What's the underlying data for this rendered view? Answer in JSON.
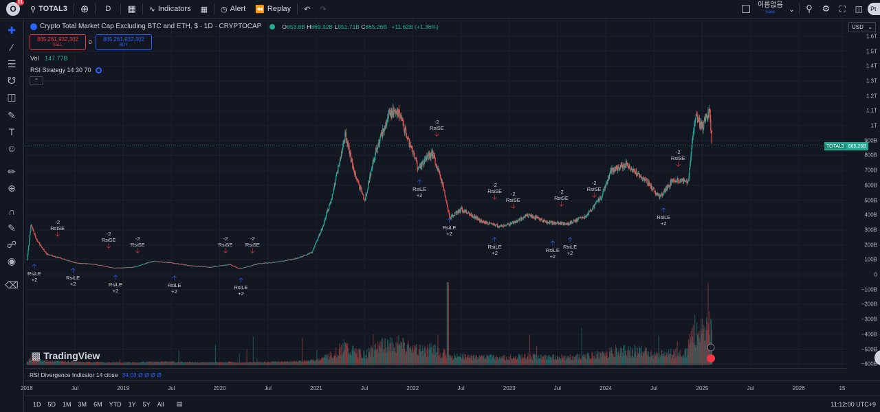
{
  "topbar": {
    "logo_text": "O",
    "badge": "11",
    "symbol": "TOTAL3",
    "interval": "D",
    "indicators_label": "Indicators",
    "alert_label": "Alert",
    "replay_label": "Replay",
    "layout_name": "이름없음",
    "layout_sub": "Save",
    "profile_initial": "Pt"
  },
  "legend": {
    "title": "Crypto Total Market Cap Excluding BTC and ETH, $ · 1D · CRYPTOCAP",
    "open": "853.8B",
    "high": "869.32B",
    "low": "851.71B",
    "close": "865.26B",
    "change": "+11.62B (+1.36%)"
  },
  "trade": {
    "sell_price": "865,261,932,302",
    "sell_label": "SELL",
    "spread": "0",
    "buy_price": "865,261,932,302",
    "buy_label": "BUY"
  },
  "indicators": {
    "vol_label": "Vol",
    "vol_value": "147.77B",
    "strategy": "RSI Strategy 14 30 70",
    "rsi_div": "RSI Divergence Indicator 14 close",
    "rsi_vals": "34.03  Ø  Ø  Ø  Ø"
  },
  "brand": "TradingView",
  "price_scale": {
    "currency": "USD",
    "current_symbol": "TOTAL3",
    "current_value": "865.26B",
    "labels": [
      "1.6T",
      "1.5T",
      "1.4T",
      "1.3T",
      "1.2T",
      "1.1T",
      "1T",
      "900B",
      "800B",
      "700B",
      "600B",
      "500B",
      "400B",
      "300B",
      "200B",
      "100B",
      "0",
      "−100B",
      "−200B",
      "−300B",
      "−400B",
      "−500B",
      "−600B"
    ]
  },
  "time_scale": [
    "2018",
    "Jul",
    "2019",
    "Jul",
    "2020",
    "Jul",
    "2021",
    "Jul",
    "2022",
    "Jul",
    "2023",
    "Jul",
    "2024",
    "Jul",
    "2025",
    "Jul",
    "2026",
    "15"
  ],
  "bottombar": {
    "ranges": [
      "1D",
      "5D",
      "1M",
      "3M",
      "6M",
      "YTD",
      "1Y",
      "5Y",
      "All"
    ],
    "clock": "11:12:00 UTC+9"
  },
  "signals": [
    {
      "type": "le",
      "label": "RsiLE",
      "qty": "+2",
      "year": 2018.08,
      "price": 90
    },
    {
      "type": "se",
      "label": "RsiSE",
      "qty": "-2",
      "year": 2018.32,
      "price": 190
    },
    {
      "type": "le",
      "label": "RsiLE",
      "qty": "+2",
      "year": 2018.48,
      "price": 65
    },
    {
      "type": "se",
      "label": "RsiSE",
      "qty": "-2",
      "year": 2018.85,
      "price": 110
    },
    {
      "type": "le",
      "label": "RsiLE",
      "qty": "+2",
      "year": 2018.92,
      "price": 20
    },
    {
      "type": "se",
      "label": "RsiSE",
      "qty": "-2",
      "year": 2019.15,
      "price": 80
    },
    {
      "type": "le",
      "label": "RsiLE",
      "qty": "+2",
      "year": 2019.53,
      "price": 15
    },
    {
      "type": "se",
      "label": "RsiSE",
      "qty": "-2",
      "year": 2020.06,
      "price": 80
    },
    {
      "type": "le",
      "label": "RsiLE",
      "qty": "+2",
      "year": 2020.22,
      "price": 0
    },
    {
      "type": "se",
      "label": "RsiSE",
      "qty": "-2",
      "year": 2020.34,
      "price": 80
    },
    {
      "type": "le",
      "label": "RsiLE",
      "qty": "+2",
      "year": 2022.07,
      "price": 660
    },
    {
      "type": "se",
      "label": "RsiSE",
      "qty": "-2",
      "year": 2022.25,
      "price": 860
    },
    {
      "type": "le",
      "label": "RsiLE",
      "qty": "+2",
      "year": 2022.38,
      "price": 400
    },
    {
      "type": "se",
      "label": "RsiSE",
      "qty": "-2",
      "year": 2022.85,
      "price": 440
    },
    {
      "type": "le",
      "label": "RsiLE",
      "qty": "+2",
      "year": 2022.85,
      "price": 270
    },
    {
      "type": "se",
      "label": "RsiSE",
      "qty": "-2",
      "year": 2023.04,
      "price": 380
    },
    {
      "type": "le",
      "label": "RsiLE",
      "qty": "+2",
      "year": 2023.45,
      "price": 250
    },
    {
      "type": "se",
      "label": "RsiSE",
      "qty": "-2",
      "year": 2023.54,
      "price": 390
    },
    {
      "type": "le",
      "label": "RsiLE",
      "qty": "+2",
      "year": 2023.63,
      "price": 270
    },
    {
      "type": "se",
      "label": "RsiSE",
      "qty": "-2",
      "year": 2023.88,
      "price": 450
    },
    {
      "type": "se",
      "label": "RsiSE",
      "qty": "-2",
      "year": 2024.75,
      "price": 660
    },
    {
      "type": "le",
      "label": "RsiLE",
      "qty": "+2",
      "year": 2024.6,
      "price": 470
    }
  ],
  "chart_data": {
    "type": "line",
    "title": "Crypto Total Market Cap Excluding BTC and ETH, $ · 1D · CRYPTOCAP",
    "x": [
      2018.0,
      2018.04,
      2018.1,
      2018.2,
      2018.3,
      2018.5,
      2018.7,
      2018.9,
      2019.1,
      2019.3,
      2019.5,
      2019.7,
      2019.9,
      2020.1,
      2020.2,
      2020.4,
      2020.6,
      2020.8,
      2020.95,
      2021.05,
      2021.15,
      2021.3,
      2021.38,
      2021.5,
      2021.6,
      2021.75,
      2021.85,
      2021.95,
      2022.05,
      2022.2,
      2022.3,
      2022.38,
      2022.5,
      2022.7,
      2022.9,
      2023.0,
      2023.2,
      2023.4,
      2023.6,
      2023.8,
      2023.95,
      2024.05,
      2024.2,
      2024.4,
      2024.55,
      2024.7,
      2024.85,
      2024.92,
      2025.0,
      2025.07,
      2025.1
    ],
    "y": [
      100,
      340,
      230,
      140,
      120,
      80,
      70,
      45,
      50,
      90,
      80,
      60,
      50,
      70,
      40,
      75,
      85,
      110,
      150,
      300,
      500,
      950,
      700,
      500,
      800,
      1080,
      1100,
      900,
      720,
      820,
      620,
      380,
      440,
      360,
      320,
      340,
      400,
      350,
      340,
      400,
      520,
      700,
      740,
      640,
      520,
      640,
      620,
      1050,
      1000,
      1100,
      865
    ],
    "xlabel": "",
    "ylabel": "",
    "ylim": [
      -600,
      1650
    ],
    "legend": "none"
  }
}
